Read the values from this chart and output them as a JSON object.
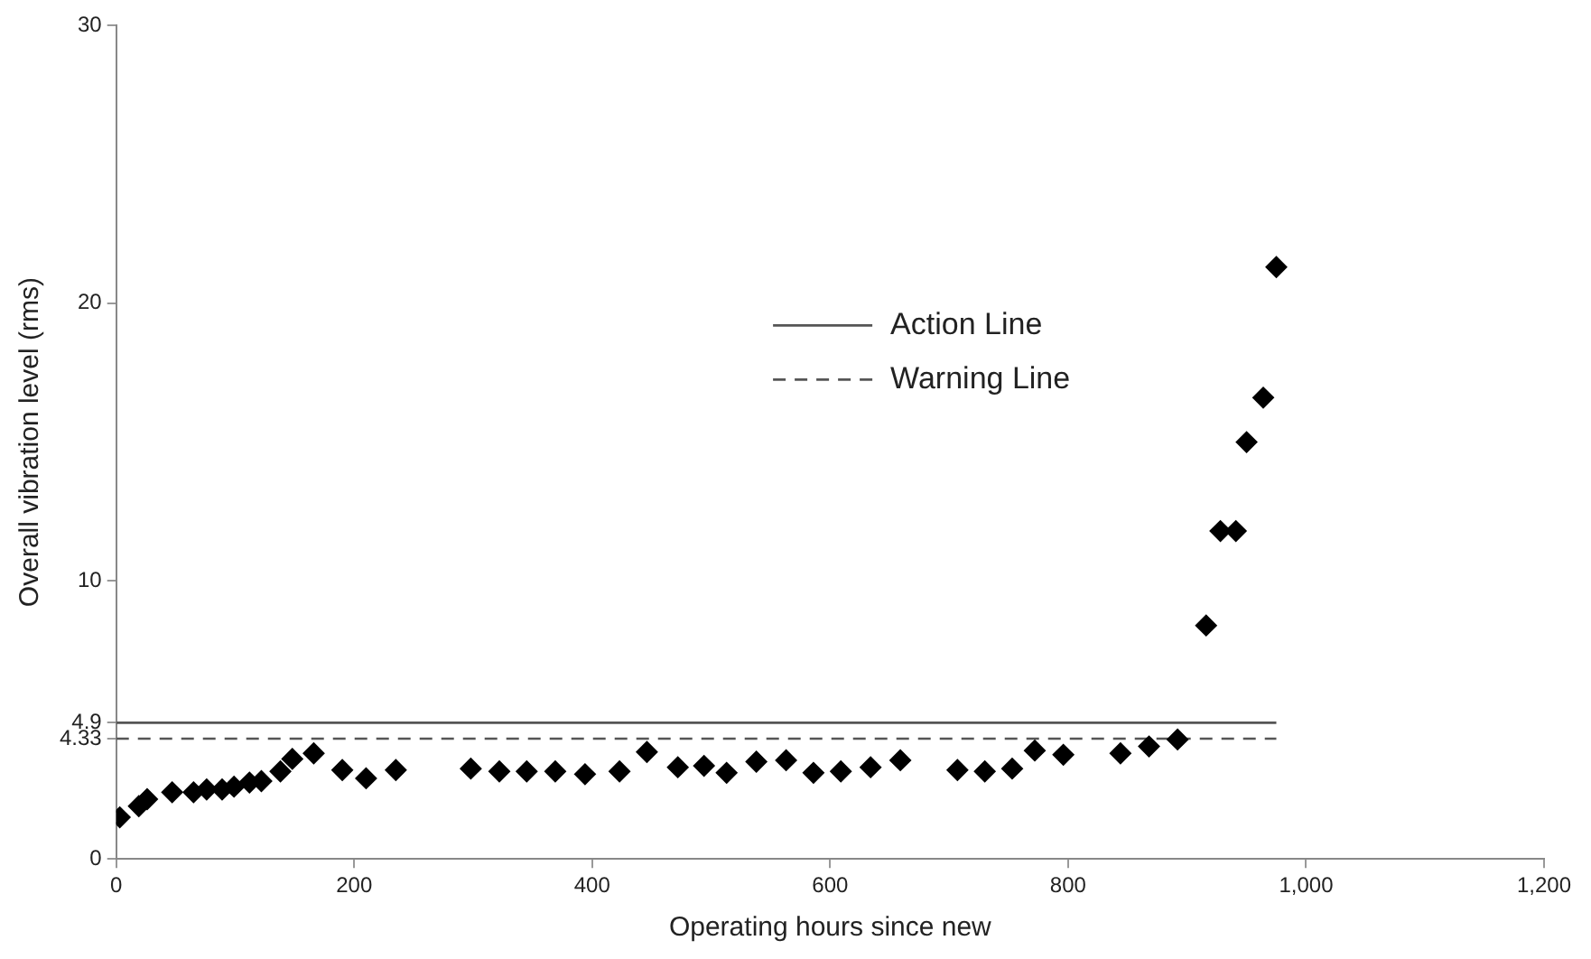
{
  "chart_data": {
    "type": "scatter",
    "xlabel": "Operating hours since new",
    "ylabel": "Overall vibration level (rms)",
    "xlim": [
      0,
      1200
    ],
    "xticks": [
      {
        "value": 0,
        "label": "0"
      },
      {
        "value": 200,
        "label": "200"
      },
      {
        "value": 400,
        "label": "400"
      },
      {
        "value": 600,
        "label": "600"
      },
      {
        "value": 800,
        "label": "800"
      },
      {
        "value": 1000,
        "label": "1,000"
      },
      {
        "value": 1200,
        "label": "1,200"
      }
    ],
    "ylim": [
      0,
      30
    ],
    "yticks": [
      0,
      4.33,
      4.9,
      10,
      20,
      30
    ],
    "grid": false,
    "legend": "top right",
    "series": [
      {
        "color": "#000000",
        "marker": "diamond",
        "x": [
          3,
          19,
          26,
          47,
          65,
          76,
          89,
          99,
          112,
          122,
          138,
          148,
          166,
          190,
          210,
          235,
          298,
          322,
          345,
          369,
          394,
          423,
          446,
          472,
          494,
          513,
          538,
          563,
          586,
          609,
          634,
          659,
          707,
          730,
          753,
          772,
          796,
          844,
          868,
          892,
          916,
          928,
          941,
          950,
          964,
          975
        ],
        "values": [
          1.5,
          1.9,
          2.15,
          2.4,
          2.4,
          2.5,
          2.5,
          2.6,
          2.75,
          2.8,
          3.15,
          3.6,
          3.8,
          3.2,
          2.9,
          3.2,
          3.25,
          3.15,
          3.15,
          3.15,
          3.05,
          3.15,
          3.85,
          3.3,
          3.35,
          3.1,
          3.5,
          3.55,
          3.1,
          3.15,
          3.3,
          3.55,
          3.2,
          3.15,
          3.25,
          3.9,
          3.75,
          3.8,
          4.05,
          4.3,
          8.4,
          11.8,
          11.8,
          15.0,
          16.6,
          21.3
        ]
      },
      {
        "type": "line",
        "name": "Action Line",
        "color": "#555555",
        "line_style": "solid",
        "marker": "none",
        "x": [
          0,
          975
        ],
        "values": [
          4.9,
          4.9
        ]
      },
      {
        "type": "line",
        "name": "Warning Line",
        "color": "#555555",
        "line_style": "dashed",
        "marker": "none",
        "x": [
          0,
          975
        ],
        "values": [
          4.33,
          4.33
        ]
      }
    ]
  }
}
